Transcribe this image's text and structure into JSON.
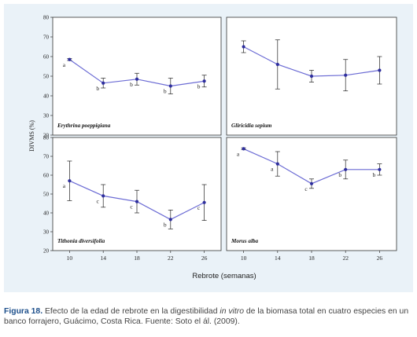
{
  "colors": {
    "line": "#6b6bd4",
    "marker": "#2e2e9e",
    "errorbar": "#222222",
    "panel_bg": "#eaf2f8",
    "caption_label": "#1d4f8b"
  },
  "chart_data": [
    {
      "type": "line",
      "title": "Erythrina poeppigiana",
      "x": [
        10,
        14,
        18,
        22,
        26
      ],
      "series": [
        {
          "values": [
            58.5,
            46.5,
            48.5,
            45,
            47.5
          ]
        }
      ],
      "error": [
        0.5,
        2.5,
        3,
        4,
        3
      ],
      "labels": [
        "a",
        "b",
        "b",
        "b",
        "b"
      ],
      "xlim": [
        8,
        28
      ],
      "ylim": [
        20,
        80
      ],
      "yticks": [
        20,
        30,
        40,
        50,
        60,
        70,
        80
      ],
      "xticks": [
        10,
        14,
        18,
        22,
        26
      ]
    },
    {
      "type": "line",
      "title": "Gliricidia sepium",
      "x": [
        10,
        14,
        18,
        22,
        26
      ],
      "series": [
        {
          "values": [
            65,
            56,
            50,
            50.5,
            53
          ]
        }
      ],
      "error": [
        3,
        12.5,
        3,
        8,
        7
      ],
      "labels": [
        "",
        "",
        "",
        "",
        ""
      ],
      "xlim": [
        8,
        28
      ],
      "ylim": [
        20,
        80
      ],
      "yticks": [
        20,
        30,
        40,
        50,
        60,
        70,
        80
      ],
      "xticks": [
        10,
        14,
        18,
        22,
        26
      ]
    },
    {
      "type": "line",
      "title": "Tithonia diversifolia",
      "x": [
        10,
        14,
        18,
        22,
        26
      ],
      "series": [
        {
          "values": [
            57,
            49,
            46,
            36.5,
            45.5
          ]
        }
      ],
      "error": [
        10.5,
        6,
        6,
        5,
        9.5
      ],
      "labels": [
        "a",
        "c",
        "c",
        "b",
        "c"
      ],
      "xlim": [
        8,
        28
      ],
      "ylim": [
        20,
        80
      ],
      "yticks": [
        20,
        30,
        40,
        50,
        60,
        70,
        80
      ],
      "xticks": [
        10,
        14,
        18,
        22,
        26
      ]
    },
    {
      "type": "line",
      "title": "Morus alba",
      "x": [
        10,
        14,
        18,
        22,
        26
      ],
      "series": [
        {
          "values": [
            74,
            66,
            55.5,
            63,
            63
          ]
        }
      ],
      "error": [
        0.5,
        6.5,
        2.5,
        5,
        3
      ],
      "labels": [
        "a",
        "a",
        "c",
        "b",
        "b"
      ],
      "xlim": [
        8,
        28
      ],
      "ylim": [
        20,
        80
      ],
      "yticks": [
        20,
        30,
        40,
        50,
        60,
        70,
        80
      ],
      "xticks": [
        10,
        14,
        18,
        22,
        26
      ]
    }
  ],
  "axes": {
    "ylabel": "DIVMS (%)",
    "xlabel": "Rebrote (semanas)"
  },
  "caption": {
    "label": "Figura 18.",
    "text_before_italic": " Efecto de la edad de rebrote en la digestibilidad ",
    "italic": "in vitro",
    "text_after_italic": " de la biomasa total en cuatro especies en un banco forrajero, Guácimo, Costa Rica. Fuente: Soto el ál. (2009)."
  }
}
